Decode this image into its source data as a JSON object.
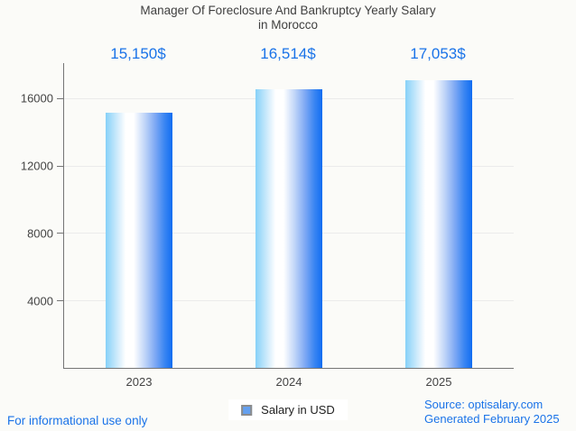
{
  "header": {
    "title_line1": "Manager Of Foreclosure And Bankruptcy Yearly Salary",
    "title_line2": "in Morocco"
  },
  "chart_data": {
    "type": "bar",
    "title": "Manager Of Foreclosure And Bankruptcy Yearly Salary in Morocco",
    "categories": [
      "2023",
      "2024",
      "2025"
    ],
    "series": [
      {
        "name": "Salary in USD",
        "values": [
          15150,
          16514,
          17053
        ]
      }
    ],
    "value_labels": [
      "15,150$",
      "16,514$",
      "17,053$"
    ],
    "xlabel": "",
    "ylabel": "",
    "ylim": [
      0,
      18075
    ],
    "yticks": [
      4000,
      8000,
      12000,
      16000
    ],
    "grid": true,
    "legend_position": "bottom"
  },
  "legend": {
    "label": "Salary in USD"
  },
  "footer": {
    "disclaimer": "For informational use only",
    "source": "Source: optisalary.com",
    "generated": "Generated February 2025"
  },
  "colors": {
    "accent_blue": "#1a73e8",
    "title_text": "#404040",
    "axis_text": "#444444",
    "axis_line": "#757575",
    "gridline": "#ebebeb",
    "background": "#fbfbf8",
    "legend_marker_fill": "#64a0f0",
    "legend_marker_border": "#8c8c8c",
    "bar_gradient": [
      "#86d1f8 0%",
      "#d8eefc 20%",
      "#ffffff 30%",
      "#ffffff 42%",
      "#c3d7f8 58%",
      "#7fa9f4 74%",
      "#3b86f2 88%",
      "#116df1 100%"
    ]
  }
}
